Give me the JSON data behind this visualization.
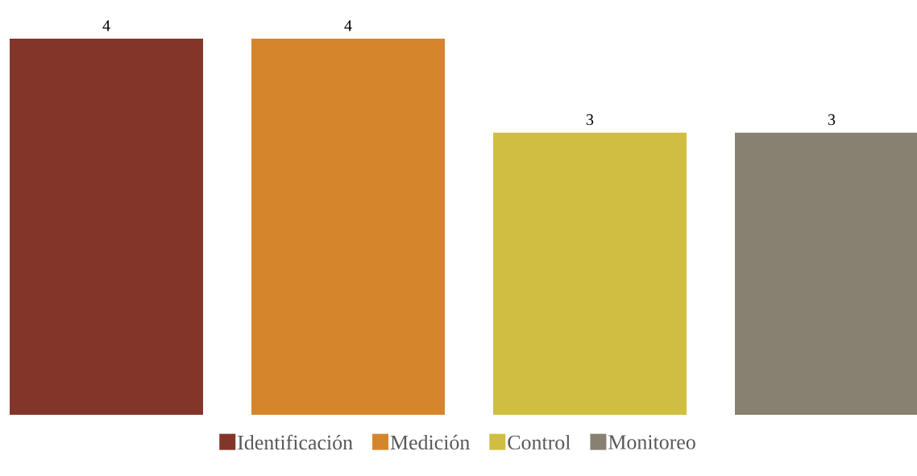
{
  "chart_data": {
    "type": "bar",
    "categories": [
      null
    ],
    "series": [
      {
        "name": "Identificación",
        "color": "#84352a",
        "values": [
          4
        ]
      },
      {
        "name": "Medición",
        "color": "#d5862d",
        "values": [
          4
        ]
      },
      {
        "name": "Control",
        "color": "#d0be42",
        "values": [
          3
        ]
      },
      {
        "name": "Monitoreo",
        "color": "#888070",
        "values": [
          3
        ]
      }
    ],
    "data_labels": true,
    "legend": "bottom"
  }
}
